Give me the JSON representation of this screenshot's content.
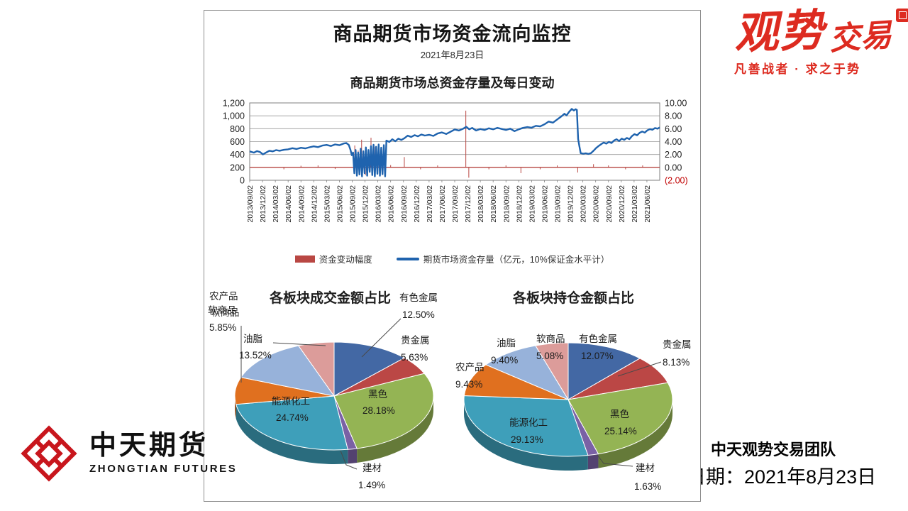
{
  "header": {
    "title": "商品期货市场资金流向监控",
    "date": "2021年8月23日"
  },
  "branding": {
    "logo_main": "观势",
    "logo_sub": "交易",
    "tagline": "凡善战者 · 求之于势"
  },
  "zhongtian": {
    "name_zh": "中天期货",
    "name_en": "ZHONGTIAN FUTURES"
  },
  "footer": {
    "team": "中天观势交易团队",
    "date_line": "日期：2021年8月23日"
  },
  "chart_data": [
    {
      "type": "line",
      "title": "商品期货市场总资金存量及每日变动",
      "grid": true,
      "legend_position": "bottom",
      "x_months_range": [
        0,
        96
      ],
      "x_tick_labels": [
        "2013/09/02",
        "2013/12/02",
        "2014/03/02",
        "2014/06/02",
        "2014/09/02",
        "2014/12/02",
        "2015/03/02",
        "2015/06/02",
        "2015/09/02",
        "2015/12/02",
        "2016/03/02",
        "2016/06/02",
        "2016/09/02",
        "2016/12/02",
        "2017/03/02",
        "2017/06/02",
        "2017/09/02",
        "2017/12/02",
        "2018/03/02",
        "2018/06/02",
        "2018/09/02",
        "2018/12/02",
        "2019/03/02",
        "2019/06/02",
        "2019/09/02",
        "2019/12/02",
        "2020/03/02",
        "2020/06/02",
        "2020/09/02",
        "2020/12/02",
        "2021/03/02",
        "2021/06/02"
      ],
      "y_left": {
        "range": [
          0,
          1200
        ],
        "ticks": [
          0,
          200,
          400,
          600,
          800,
          1000,
          1200
        ],
        "tick_labels": [
          "0",
          "200",
          "400",
          "600",
          "800",
          "1,000",
          "1,200"
        ]
      },
      "y_right": {
        "range": [
          -2,
          10
        ],
        "ticks": [
          10,
          8,
          6,
          4,
          2,
          0,
          -2
        ],
        "tick_labels": [
          "10.00",
          "8.00",
          "6.00",
          "4.00",
          "2.00",
          "0.00",
          "(2.00)"
        ]
      },
      "series": [
        {
          "name": "期货市场资金存量（亿元，10%保证金水平计）",
          "axis": "left",
          "type": "line",
          "color": "#1F63AE",
          "points": [
            [
              0,
              448
            ],
            [
              1,
              428
            ],
            [
              1.7,
              452
            ],
            [
              2.4,
              438
            ],
            [
              3.1,
              402
            ],
            [
              3.8,
              428
            ],
            [
              4.6,
              458
            ],
            [
              5.4,
              448
            ],
            [
              6.2,
              468
            ],
            [
              7,
              458
            ],
            [
              8,
              472
            ],
            [
              9,
              480
            ],
            [
              10,
              498
            ],
            [
              11,
              486
            ],
            [
              12,
              504
            ],
            [
              13,
              494
            ],
            [
              14,
              512
            ],
            [
              15,
              526
            ],
            [
              16,
              514
            ],
            [
              17,
              538
            ],
            [
              18,
              548
            ],
            [
              19,
              532
            ],
            [
              20,
              556
            ],
            [
              21,
              544
            ],
            [
              22,
              570
            ],
            [
              22.6,
              578
            ],
            [
              23.2,
              548
            ],
            [
              23.6,
              470
            ],
            [
              23.9,
              390
            ],
            [
              24.2,
              430
            ],
            [
              24.5,
              110
            ],
            [
              24.8,
              470
            ],
            [
              25.1,
              70
            ],
            [
              25.4,
              430
            ],
            [
              25.7,
              90
            ],
            [
              26,
              490
            ],
            [
              26.3,
              60
            ],
            [
              26.6,
              450
            ],
            [
              26.9,
              110
            ],
            [
              27.2,
              510
            ],
            [
              27.5,
              70
            ],
            [
              27.8,
              470
            ],
            [
              28.1,
              130
            ],
            [
              28.4,
              530
            ],
            [
              28.7,
              80
            ],
            [
              29,
              550
            ],
            [
              29.3,
              60
            ],
            [
              29.6,
              520
            ],
            [
              29.9,
              100
            ],
            [
              30.2,
              555
            ],
            [
              30.5,
              70
            ],
            [
              30.8,
              505
            ],
            [
              31.1,
              95
            ],
            [
              31.4,
              545
            ],
            [
              31.7,
              60
            ],
            [
              32,
              615
            ],
            [
              32.7,
              595
            ],
            [
              33.4,
              636
            ],
            [
              34.1,
              606
            ],
            [
              34.8,
              645
            ],
            [
              35.5,
              625
            ],
            [
              36.2,
              652
            ],
            [
              37,
              692
            ],
            [
              37.8,
              672
            ],
            [
              38.6,
              700
            ],
            [
              39.4,
              682
            ],
            [
              40.2,
              710
            ],
            [
              41,
              694
            ],
            [
              42,
              706
            ],
            [
              43,
              688
            ],
            [
              44,
              725
            ],
            [
              45,
              742
            ],
            [
              46,
              718
            ],
            [
              47,
              752
            ],
            [
              48,
              788
            ],
            [
              49,
              772
            ],
            [
              50,
              800
            ],
            [
              50.7,
              830
            ],
            [
              51.4,
              790
            ],
            [
              52.1,
              812
            ],
            [
              53,
              772
            ],
            [
              54,
              795
            ],
            [
              55,
              780
            ],
            [
              56,
              806
            ],
            [
              57,
              790
            ],
            [
              58,
              814
            ],
            [
              59,
              796
            ],
            [
              60,
              780
            ],
            [
              61,
              800
            ],
            [
              62,
              762
            ],
            [
              63,
              790
            ],
            [
              64,
              812
            ],
            [
              65,
              826
            ],
            [
              66,
              816
            ],
            [
              67,
              844
            ],
            [
              68,
              836
            ],
            [
              69,
              868
            ],
            [
              70,
              910
            ],
            [
              71,
              894
            ],
            [
              72,
              944
            ],
            [
              73,
              992
            ],
            [
              73.7,
              1032
            ],
            [
              74.2,
              1006
            ],
            [
              74.8,
              1064
            ],
            [
              75.4,
              1106
            ],
            [
              75.9,
              1082
            ],
            [
              76.3,
              1102
            ],
            [
              76.6,
              1092
            ],
            [
              76.9,
              640
            ],
            [
              77.2,
              525
            ],
            [
              77.5,
              420
            ],
            [
              78.1,
              412
            ],
            [
              78.7,
              418
            ],
            [
              79.3,
              408
            ],
            [
              79.9,
              420
            ],
            [
              80.5,
              458
            ],
            [
              81.1,
              500
            ],
            [
              81.7,
              532
            ],
            [
              82.3,
              560
            ],
            [
              82.9,
              586
            ],
            [
              83.5,
              568
            ],
            [
              84.1,
              596
            ],
            [
              84.7,
              578
            ],
            [
              85.3,
              616
            ],
            [
              85.9,
              636
            ],
            [
              86.5,
              608
            ],
            [
              87.1,
              646
            ],
            [
              87.7,
              628
            ],
            [
              88.3,
              656
            ],
            [
              88.9,
              638
            ],
            [
              89.5,
              686
            ],
            [
              90.1,
              716
            ],
            [
              90.7,
              698
            ],
            [
              91.3,
              736
            ],
            [
              91.9,
              756
            ],
            [
              92.5,
              740
            ],
            [
              93.1,
              774
            ],
            [
              93.7,
              794
            ],
            [
              94.3,
              784
            ],
            [
              94.9,
              810
            ],
            [
              95.5,
              800
            ],
            [
              96,
              820
            ]
          ]
        },
        {
          "name": "资金变动幅度",
          "axis": "right",
          "type": "spikes",
          "color": "#B94743",
          "baseline": 0,
          "points": [
            [
              8,
              -0.3
            ],
            [
              12,
              0.25
            ],
            [
              16,
              0.3
            ],
            [
              20,
              -0.25
            ],
            [
              24.6,
              3.4
            ],
            [
              25.4,
              2.6
            ],
            [
              26.2,
              4.3
            ],
            [
              27.1,
              -1.2
            ],
            [
              28.4,
              4.6
            ],
            [
              29.2,
              3.2
            ],
            [
              30.1,
              2.4
            ],
            [
              33,
              0.35
            ],
            [
              36.2,
              1.6
            ],
            [
              40,
              -0.3
            ],
            [
              44,
              0.3
            ],
            [
              50.6,
              8.8
            ],
            [
              51.3,
              -1.6
            ],
            [
              56,
              -0.3
            ],
            [
              60,
              0.3
            ],
            [
              63.5,
              -0.9
            ],
            [
              68,
              -0.3
            ],
            [
              72,
              0.3
            ],
            [
              76.8,
              -0.8
            ],
            [
              80.5,
              0.5
            ],
            [
              84,
              0.3
            ],
            [
              88,
              -0.3
            ],
            [
              92,
              0.3
            ]
          ]
        }
      ]
    },
    {
      "type": "pie",
      "title": "各板块成交金额占比",
      "slices": [
        {
          "label": "有色金属",
          "pct_label": "12.50%",
          "value": 12.5,
          "color": "#4368A4"
        },
        {
          "label": "贵金属",
          "pct_label": "5.63%",
          "value": 5.63,
          "color": "#BB4745"
        },
        {
          "label": "黑色",
          "pct_label": "28.18%",
          "value": 28.18,
          "color": "#94B454"
        },
        {
          "label": "建材",
          "pct_label": "1.49%",
          "value": 1.49,
          "color": "#7A61A5"
        },
        {
          "label": "能源化工",
          "pct_label": "24.74%",
          "value": 24.74,
          "color": "#3E9FBA"
        },
        {
          "label": "农产品",
          "pct_label": "",
          "value": 8.09,
          "color": "#E0701F"
        },
        {
          "label": "油脂",
          "pct_label": "13.52%",
          "value": 13.52,
          "color": "#97B2DA"
        },
        {
          "label": "软商品",
          "pct_label": "5.85%",
          "value": 5.85,
          "color": "#DC9C9A"
        }
      ]
    },
    {
      "type": "pie",
      "title": "各板块持仓金额占比",
      "slices": [
        {
          "label": "有色金属",
          "pct_label": "12.07%",
          "value": 12.07,
          "color": "#4368A4"
        },
        {
          "label": "贵金属",
          "pct_label": "8.13%",
          "value": 8.13,
          "color": "#BB4745"
        },
        {
          "label": "黑色",
          "pct_label": "25.14%",
          "value": 25.14,
          "color": "#94B454"
        },
        {
          "label": "建材",
          "pct_label": "1.63%",
          "value": 1.63,
          "color": "#7A61A5"
        },
        {
          "label": "能源化工",
          "pct_label": "29.13%",
          "value": 29.13,
          "color": "#3E9FBA"
        },
        {
          "label": "农产品",
          "pct_label": "9.43%",
          "value": 9.43,
          "color": "#E0701F"
        },
        {
          "label": "油脂",
          "pct_label": "9.40%",
          "value": 9.4,
          "color": "#97B2DA"
        },
        {
          "label": "软商品",
          "pct_label": "5.08%",
          "value": 5.08,
          "color": "#DC9C9A"
        }
      ]
    }
  ]
}
